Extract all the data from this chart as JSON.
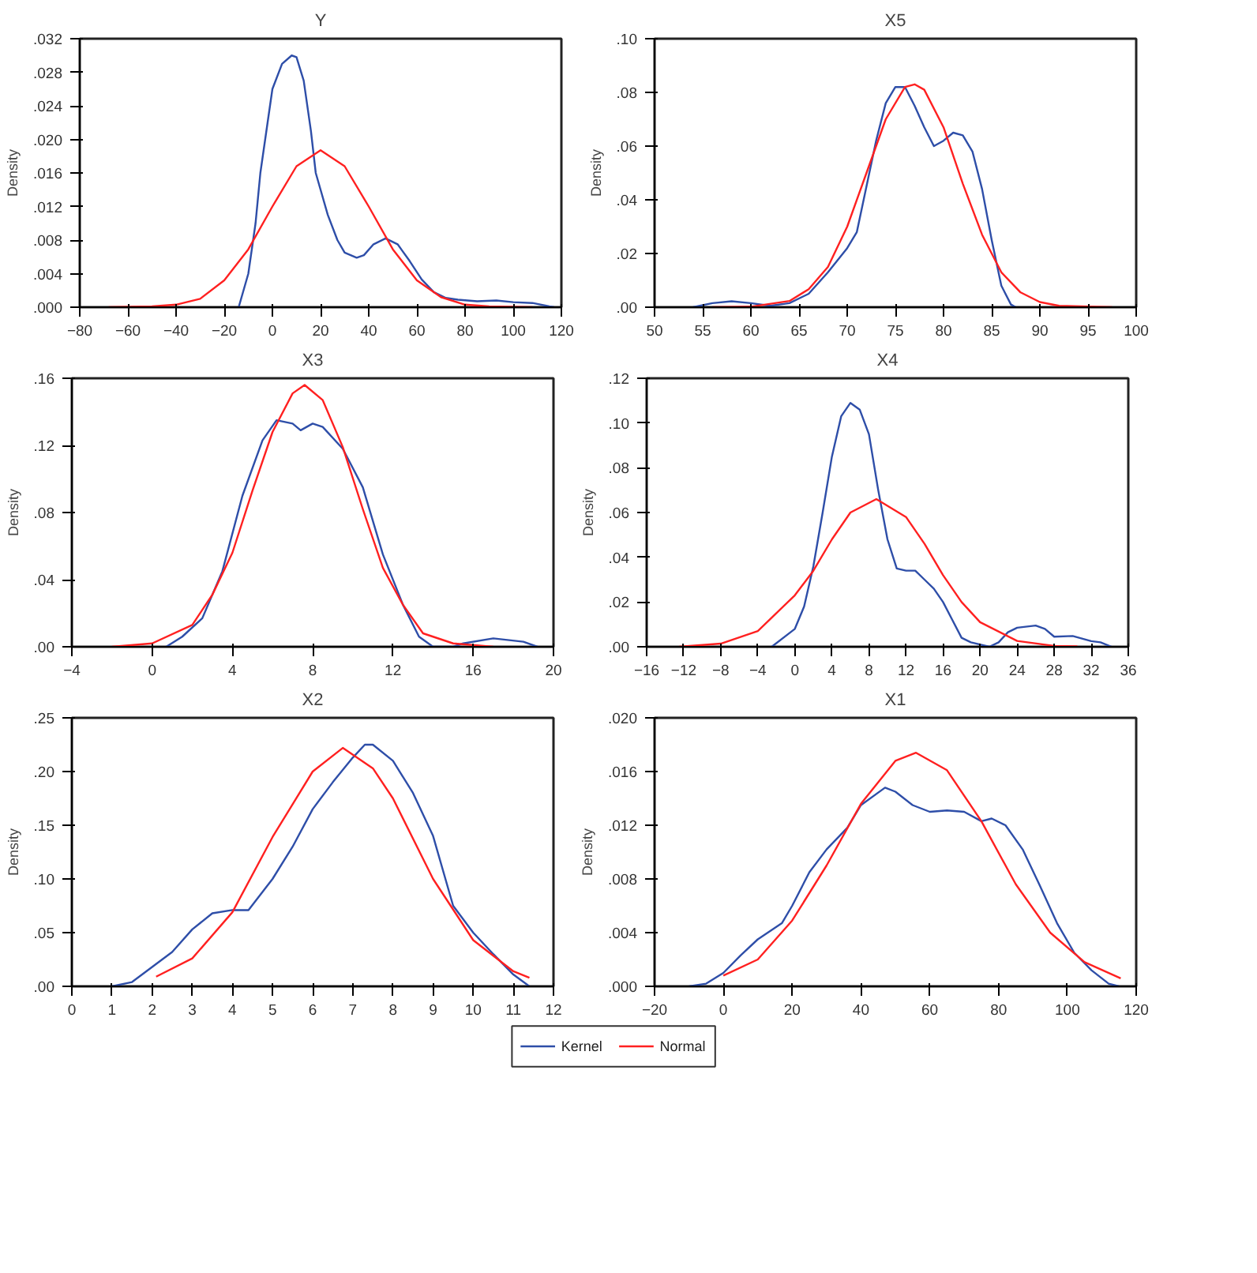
{
  "chart_data": [
    {
      "type": "line",
      "title": "Y",
      "ylabel": "Density",
      "xlim": [
        -80,
        120
      ],
      "xticks": [
        -80,
        -60,
        -40,
        -20,
        0,
        20,
        40,
        60,
        80,
        100,
        120
      ],
      "ylim": [
        0,
        0.032
      ],
      "yticks": [
        {
          "value": 0,
          "label": ".000"
        },
        {
          "value": 0.004,
          "label": ".004"
        },
        {
          "value": 0.008,
          "label": ".008"
        },
        {
          "value": 0.012,
          "label": ".012"
        },
        {
          "value": 0.016,
          "label": ".016"
        },
        {
          "value": 0.02,
          "label": ".020"
        },
        {
          "value": 0.024,
          "label": ".024"
        },
        {
          "value": 0.028,
          "label": ".028"
        },
        {
          "value": 0.032,
          "label": ".032"
        }
      ],
      "series": [
        {
          "color": "#2e4ea8",
          "x": [
            -14,
            -10,
            -7,
            -5,
            -2,
            0,
            4,
            8,
            10,
            13,
            16,
            18,
            20,
            23,
            27,
            30,
            35,
            38,
            42,
            47,
            52,
            57,
            62,
            67,
            72,
            77,
            85,
            93,
            100,
            108,
            115,
            117
          ],
          "values": [
            0,
            0.004,
            0.01,
            0.016,
            0.022,
            0.026,
            0.029,
            0.03,
            0.0298,
            0.027,
            0.021,
            0.016,
            0.014,
            0.011,
            0.008,
            0.0065,
            0.0059,
            0.0062,
            0.0075,
            0.0082,
            0.0075,
            0.0055,
            0.0033,
            0.0018,
            0.0011,
            0.0009,
            0.0007,
            0.0008,
            0.0006,
            0.0005,
            0.0001,
            0
          ]
        },
        {
          "color": "#ff2020",
          "x": [
            -68,
            -50,
            -40,
            -30,
            -20,
            -10,
            0,
            10,
            20,
            30,
            40,
            50,
            60,
            70,
            80,
            90,
            108
          ],
          "values": [
            0,
            0.0001,
            0.0003,
            0.001,
            0.0032,
            0.0069,
            0.012,
            0.0168,
            0.0187,
            0.0168,
            0.012,
            0.0069,
            0.0032,
            0.0012,
            0.0003,
            0.0001,
            0
          ]
        }
      ]
    },
    {
      "type": "line",
      "title": "X5",
      "ylabel": "Density",
      "xlim": [
        50,
        100
      ],
      "xticks": [
        50,
        55,
        60,
        65,
        70,
        75,
        80,
        85,
        90,
        95,
        100
      ],
      "ylim": [
        0,
        0.1
      ],
      "yticks": [
        {
          "value": 0,
          "label": ".00"
        },
        {
          "value": 0.02,
          "label": ".02"
        },
        {
          "value": 0.04,
          "label": ".04"
        },
        {
          "value": 0.06,
          "label": ".06"
        },
        {
          "value": 0.08,
          "label": ".08"
        },
        {
          "value": 0.1,
          "label": ".10"
        }
      ],
      "series": [
        {
          "color": "#2e4ea8",
          "x": [
            54,
            56,
            58,
            60,
            62,
            64,
            66,
            68,
            70,
            71,
            72,
            73,
            74,
            75,
            76,
            77,
            78,
            79,
            80,
            81,
            82,
            83,
            84,
            85,
            86,
            87,
            87.5
          ],
          "values": [
            0,
            0.0015,
            0.0022,
            0.0015,
            0.0005,
            0.0015,
            0.005,
            0.013,
            0.022,
            0.028,
            0.045,
            0.062,
            0.076,
            0.082,
            0.082,
            0.075,
            0.067,
            0.06,
            0.062,
            0.065,
            0.064,
            0.058,
            0.044,
            0.025,
            0.008,
            0.001,
            0
          ]
        },
        {
          "color": "#ff2020",
          "x": [
            56,
            60,
            64,
            66,
            68,
            70,
            72,
            74,
            76,
            77,
            78,
            80,
            82,
            84,
            86,
            88,
            90,
            92,
            97.5
          ],
          "values": [
            0,
            0.0002,
            0.0023,
            0.0067,
            0.015,
            0.03,
            0.05,
            0.07,
            0.082,
            0.083,
            0.081,
            0.067,
            0.046,
            0.027,
            0.013,
            0.0055,
            0.0019,
            0.0005,
            0
          ]
        }
      ]
    },
    {
      "type": "line",
      "title": "X3",
      "ylabel": "Density",
      "xlim": [
        -4,
        20
      ],
      "xticks": [
        -4,
        0,
        4,
        8,
        12,
        16,
        20
      ],
      "ylim": [
        0,
        0.16
      ],
      "yticks": [
        {
          "value": 0,
          "label": ".00"
        },
        {
          "value": 0.04,
          "label": ".04"
        },
        {
          "value": 0.08,
          "label": ".08"
        },
        {
          "value": 0.12,
          "label": ".12"
        },
        {
          "value": 0.16,
          "label": ".16"
        }
      ],
      "series": [
        {
          "color": "#2e4ea8",
          "x": [
            0.7,
            1.5,
            2.5,
            3.5,
            4.5,
            5.5,
            6.2,
            7,
            7.4,
            8,
            8.5,
            9.5,
            10.5,
            11.5,
            12.5,
            13.3,
            14,
            15,
            15.5,
            17,
            18.5,
            19.2
          ],
          "values": [
            0,
            0.006,
            0.017,
            0.045,
            0.09,
            0.123,
            0.135,
            0.133,
            0.129,
            0.133,
            0.131,
            0.118,
            0.095,
            0.055,
            0.025,
            0.006,
            0,
            0,
            0.002,
            0.005,
            0.003,
            0
          ]
        },
        {
          "color": "#ff2020",
          "x": [
            -2,
            0,
            2,
            3,
            4,
            5,
            6,
            7,
            7.6,
            8.5,
            9.5,
            10.5,
            11.5,
            12.5,
            13.5,
            15,
            17
          ],
          "values": [
            0,
            0.002,
            0.013,
            0.031,
            0.056,
            0.093,
            0.128,
            0.151,
            0.156,
            0.147,
            0.119,
            0.082,
            0.047,
            0.025,
            0.008,
            0.002,
            0
          ]
        }
      ]
    },
    {
      "type": "line",
      "title": "X4",
      "ylabel": "Density",
      "xlim": [
        -16,
        36
      ],
      "xticks": [
        -16,
        -12,
        -8,
        -4,
        0,
        4,
        8,
        12,
        16,
        20,
        24,
        28,
        32,
        36
      ],
      "ylim": [
        0,
        0.12
      ],
      "yticks": [
        {
          "value": 0,
          "label": ".00"
        },
        {
          "value": 0.02,
          "label": ".02"
        },
        {
          "value": 0.04,
          "label": ".04"
        },
        {
          "value": 0.06,
          "label": ".06"
        },
        {
          "value": 0.08,
          "label": ".08"
        },
        {
          "value": 0.1,
          "label": ".10"
        },
        {
          "value": 0.12,
          "label": ".12"
        }
      ],
      "series": [
        {
          "color": "#2e4ea8",
          "x": [
            -2.5,
            0,
            1,
            2,
            3,
            4,
            5,
            6,
            7,
            8,
            9,
            10,
            11,
            12,
            13,
            14,
            15,
            16,
            17,
            18,
            19,
            21,
            22,
            23,
            24,
            26,
            27,
            28,
            30,
            32,
            33,
            34.2
          ],
          "values": [
            0,
            0.008,
            0.018,
            0.036,
            0.06,
            0.085,
            0.103,
            0.109,
            0.106,
            0.095,
            0.07,
            0.048,
            0.035,
            0.034,
            0.034,
            0.03,
            0.026,
            0.02,
            0.012,
            0.004,
            0.002,
            0,
            0.002,
            0.0065,
            0.0085,
            0.0095,
            0.008,
            0.0045,
            0.0048,
            0.0025,
            0.002,
            0
          ]
        },
        {
          "color": "#ff2020",
          "x": [
            -12.5,
            -8,
            -4,
            0,
            2,
            4,
            6,
            8.8,
            12,
            14,
            16,
            18,
            20,
            24,
            28,
            30.5
          ],
          "values": [
            0,
            0.0014,
            0.007,
            0.023,
            0.034,
            0.048,
            0.06,
            0.066,
            0.058,
            0.046,
            0.032,
            0.02,
            0.011,
            0.0026,
            0.0004,
            0.0002
          ]
        }
      ]
    },
    {
      "type": "line",
      "title": "X2",
      "ylabel": "Density",
      "xlim": [
        0,
        12
      ],
      "xticks": [
        0,
        1,
        2,
        3,
        4,
        5,
        6,
        7,
        8,
        9,
        10,
        11,
        12
      ],
      "ylim": [
        0,
        0.25
      ],
      "yticks": [
        {
          "value": 0,
          "label": ".00"
        },
        {
          "value": 0.05,
          "label": ".05"
        },
        {
          "value": 0.1,
          "label": ".10"
        },
        {
          "value": 0.15,
          "label": ".15"
        },
        {
          "value": 0.2,
          "label": ".20"
        },
        {
          "value": 0.25,
          "label": ".25"
        }
      ],
      "series": [
        {
          "color": "#2e4ea8",
          "x": [
            1,
            1.5,
            2,
            2.5,
            3,
            3.5,
            4,
            4.4,
            5,
            5.5,
            6,
            6.5,
            7,
            7.3,
            7.5,
            8,
            8.5,
            9,
            9.5,
            10,
            10.5,
            11,
            11.4
          ],
          "values": [
            0,
            0.004,
            0.018,
            0.032,
            0.053,
            0.068,
            0.071,
            0.071,
            0.1,
            0.13,
            0.165,
            0.19,
            0.213,
            0.225,
            0.225,
            0.21,
            0.18,
            0.14,
            0.075,
            0.05,
            0.03,
            0.011,
            0
          ]
        },
        {
          "color": "#ff2020",
          "x": [
            2.1,
            3,
            4,
            5,
            6,
            6.75,
            7.5,
            8,
            9,
            10,
            11,
            11.4
          ],
          "values": [
            0.009,
            0.026,
            0.069,
            0.139,
            0.2,
            0.222,
            0.203,
            0.175,
            0.1,
            0.043,
            0.014,
            0.008
          ]
        }
      ]
    },
    {
      "type": "line",
      "title": "X1",
      "ylabel": "Density",
      "legend": "bottom",
      "xlim": [
        -20,
        120
      ],
      "xticks": [
        -20,
        0,
        20,
        40,
        60,
        80,
        100,
        120
      ],
      "ylim": [
        0,
        0.02
      ],
      "yticks": [
        {
          "value": 0,
          "label": ".000"
        },
        {
          "value": 0.004,
          "label": ".004"
        },
        {
          "value": 0.008,
          "label": ".008"
        },
        {
          "value": 0.012,
          "label": ".012"
        },
        {
          "value": 0.016,
          "label": ".016"
        },
        {
          "value": 0.02,
          "label": ".020"
        }
      ],
      "series": [
        {
          "name": "Kernel",
          "color": "#2e4ea8",
          "x": [
            -10,
            -5,
            0,
            5,
            10,
            17,
            20,
            25,
            30,
            36,
            40,
            47,
            50,
            55,
            60,
            65,
            70,
            75,
            78,
            82,
            87,
            92,
            97,
            102,
            107,
            112,
            115
          ],
          "values": [
            0,
            0.0002,
            0.001,
            0.0023,
            0.0035,
            0.0047,
            0.006,
            0.0085,
            0.0102,
            0.0118,
            0.0135,
            0.0148,
            0.0145,
            0.0135,
            0.013,
            0.0131,
            0.013,
            0.0123,
            0.0125,
            0.012,
            0.0102,
            0.0075,
            0.0047,
            0.0025,
            0.0012,
            0.0002,
            0
          ]
        },
        {
          "name": "Normal",
          "color": "#ff2020",
          "x": [
            0,
            10,
            20,
            30,
            40,
            50,
            56,
            65,
            75,
            85,
            95,
            105,
            115.5
          ],
          "values": [
            0.0008,
            0.002,
            0.0049,
            0.009,
            0.0136,
            0.0168,
            0.0174,
            0.0161,
            0.0123,
            0.0076,
            0.004,
            0.0018,
            0.0006
          ]
        }
      ]
    }
  ]
}
